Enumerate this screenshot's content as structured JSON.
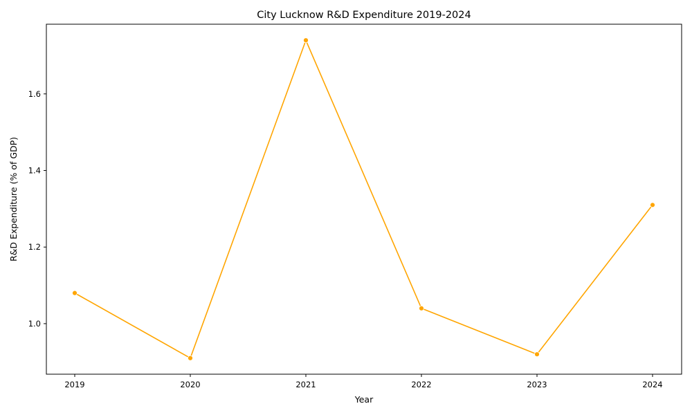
{
  "chart_data": {
    "type": "line",
    "title": "City Lucknow R&D Expenditure 2019-2024",
    "xlabel": "Year",
    "ylabel": "R&D Expenditure (% of GDP)",
    "x": [
      "2019",
      "2020",
      "2021",
      "2022",
      "2023",
      "2024"
    ],
    "series": [
      {
        "values": [
          1.08,
          0.91,
          1.74,
          1.04,
          0.92,
          1.31
        ]
      }
    ],
    "yticks": [
      "1.0",
      "1.2",
      "1.4",
      "1.6"
    ],
    "ylim": [
      0.868,
      1.782
    ],
    "grid": false,
    "color": "#FFA500"
  }
}
